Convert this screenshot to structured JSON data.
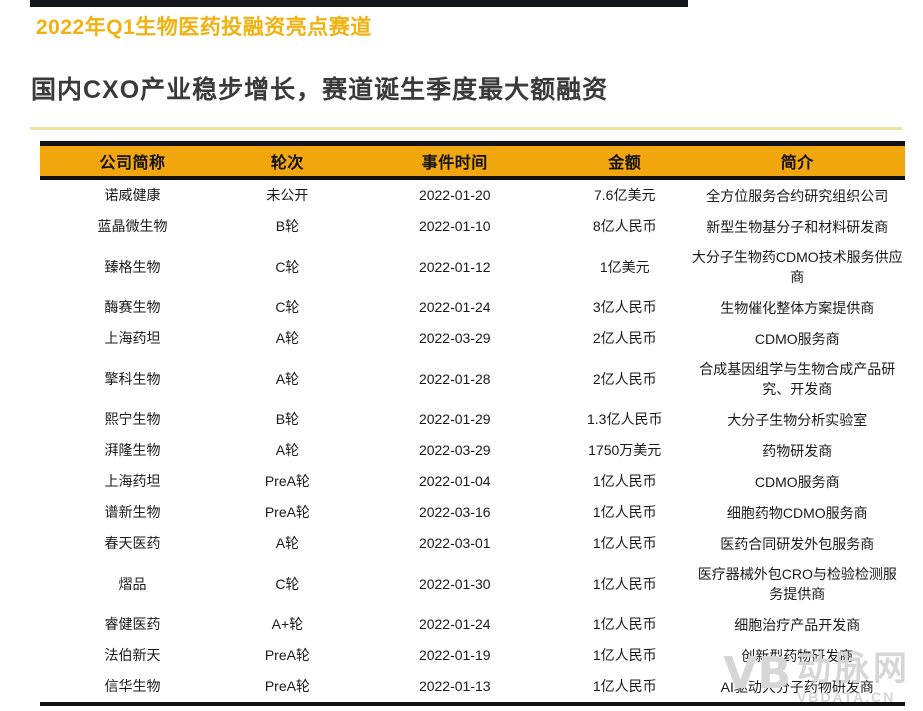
{
  "page": {
    "kicker": "2022年Q1生物医药投融资亮点赛道",
    "headline": "国内CXO产业稳步增长，赛道诞生季度最大额融资"
  },
  "colors": {
    "accent_gold": "#F0B211",
    "table_header_amber": "#F2A60D",
    "headline_dark": "#3A3A3A",
    "pale_rule_yellow": "#EDE2A4",
    "border_black": "#111111",
    "watermark_gray": "#D6D6D6"
  },
  "table": {
    "columns": [
      "公司简称",
      "轮次",
      "事件时间",
      "金额",
      "简介"
    ],
    "rows": [
      [
        "诺威健康",
        "未公开",
        "2022-01-20",
        "7.6亿美元",
        "全方位服务合约研究组织公司"
      ],
      [
        "蓝晶微生物",
        "B轮",
        "2022-01-10",
        "8亿人民币",
        "新型生物基分子和材料研发商"
      ],
      [
        "臻格生物",
        "C轮",
        "2022-01-12",
        "1亿美元",
        "大分子生物药CDMO技术服务供应商"
      ],
      [
        "酶赛生物",
        "C轮",
        "2022-01-24",
        "3亿人民币",
        "生物催化整体方案提供商"
      ],
      [
        "上海药坦",
        "A轮",
        "2022-03-29",
        "2亿人民币",
        "CDMO服务商"
      ],
      [
        "擎科生物",
        "A轮",
        "2022-01-28",
        "2亿人民币",
        "合成基因组学与生物合成产品研究、开发商"
      ],
      [
        "熙宁生物",
        "B轮",
        "2022-01-29",
        "1.3亿人民币",
        "大分子生物分析实验室"
      ],
      [
        "湃隆生物",
        "A轮",
        "2022-03-29",
        "1750万美元",
        "药物研发商"
      ],
      [
        "上海药坦",
        "PreA轮",
        "2022-01-04",
        "1亿人民币",
        "CDMO服务商"
      ],
      [
        "谱新生物",
        "PreA轮",
        "2022-03-16",
        "1亿人民币",
        "细胞药物CDMO服务商"
      ],
      [
        "春天医药",
        "A轮",
        "2022-03-01",
        "1亿人民币",
        "医药合同研发外包服务商"
      ],
      [
        "熠品",
        "C轮",
        "2022-01-30",
        "1亿人民币",
        "医疗器械外包CRO与检验检测服务提供商"
      ],
      [
        "睿健医药",
        "A+轮",
        "2022-01-24",
        "1亿人民币",
        "细胞治疗产品开发商"
      ],
      [
        "法伯新天",
        "PreA轮",
        "2022-01-19",
        "1亿人民币",
        "创新型药物研发商"
      ],
      [
        "信华生物",
        "PreA轮",
        "2022-01-13",
        "1亿人民币",
        "AI驱动大分子药物研发商"
      ]
    ]
  },
  "watermark": {
    "logo": "VB",
    "name": "动脉网",
    "domain": "VBDATA.CN"
  }
}
